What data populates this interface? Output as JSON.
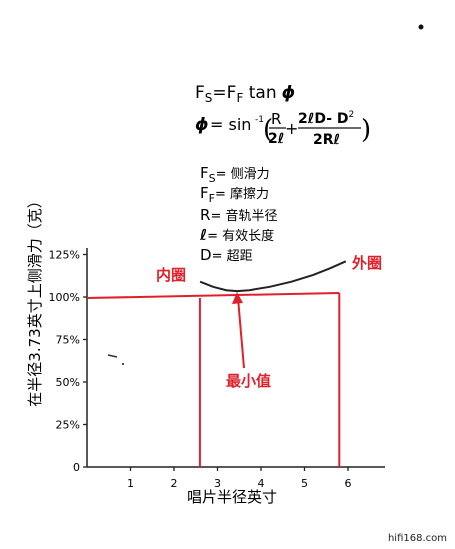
{
  "chart_data": {
    "type": "line",
    "title": "",
    "xlabel": "唱片半径英寸",
    "ylabel": "在半径3.73英寸上侧滑力（克）",
    "xlim": [
      0,
      7
    ],
    "ylim": [
      0,
      150
    ],
    "x_ticks": [
      "1",
      "2",
      "3",
      "4",
      "5",
      "6"
    ],
    "y_ticks": [
      "0",
      "25%",
      "50%",
      "75%",
      "100%",
      "125%"
    ],
    "series": [
      {
        "x": [
          2.6,
          2.9,
          3.2,
          3.45,
          3.73,
          4.2,
          4.7,
          5.2,
          5.6,
          5.95
        ],
        "y": [
          109,
          106,
          104,
          103.5,
          104,
          106,
          109,
          113,
          117,
          121
        ]
      }
    ],
    "reference_lines": {
      "y_100": 100,
      "x_inner": 2.55,
      "x_outer": 5.8
    },
    "annotations": {
      "inner": "内圈",
      "outer": "外圈",
      "minimum": "最小值"
    }
  },
  "formula": {
    "line1": {
      "F1": "F",
      "s1": "S",
      "eq": "=",
      "F2": "F",
      "s2": "F",
      "tan": " tan",
      "phi": "ϕ"
    },
    "line2": {
      "phi": "ϕ",
      "eq_sin": "= sin",
      "sup": "-1",
      "lparen": "(",
      "f1_num": "R",
      "f1_den": "2ℓ",
      "plus": "+",
      "f2_num": "2ℓD- D",
      "f2_sup": "2",
      "f2_den": "2Rℓ",
      "rparen": ")"
    }
  },
  "legend": {
    "items": [
      {
        "sym": "F",
        "sub": "S",
        "text": "= 侧滑力"
      },
      {
        "sym": "F",
        "sub": "F",
        "text": "= 摩擦力"
      },
      {
        "sym": "R",
        "sub": "",
        "text": "= 音轨半径"
      },
      {
        "sym": "ℓ",
        "sub": "",
        "text": "= 有效长度"
      },
      {
        "sym": "D",
        "sub": "",
        "text": "= 超距"
      }
    ]
  },
  "watermark": "hifi168.com"
}
